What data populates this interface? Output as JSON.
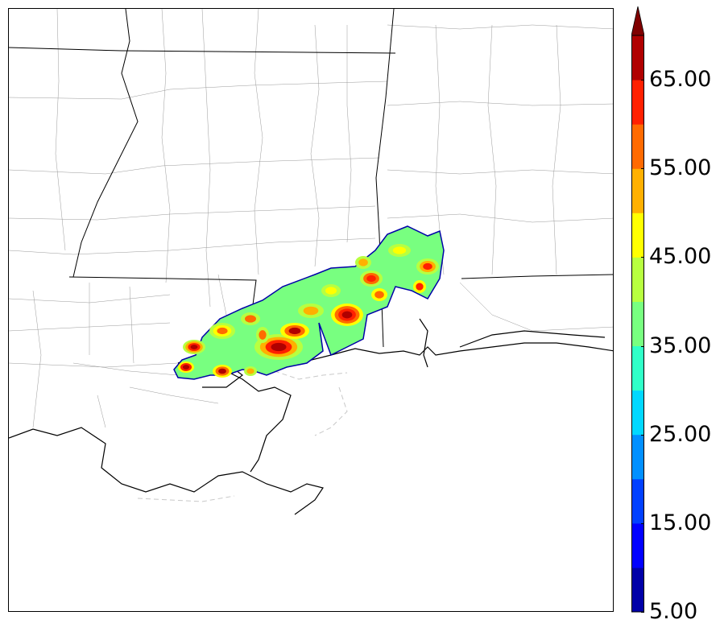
{
  "colorbar": {
    "labels": [
      "65.00",
      "55.00",
      "45.00",
      "35.00",
      "25.00",
      "15.00",
      "5.00"
    ],
    "levels": [
      5,
      10,
      15,
      20,
      25,
      30,
      35,
      40,
      45,
      50,
      55,
      60,
      65,
      70
    ],
    "colors": [
      "#0000a8",
      "#0000ff",
      "#0040ff",
      "#0090ff",
      "#00d8ff",
      "#30ffc8",
      "#78ff80",
      "#b8ff40",
      "#ffff00",
      "#ffb000",
      "#ff6a00",
      "#ff2000",
      "#b00000"
    ],
    "extend_color": "#800000",
    "extend": "max"
  },
  "map": {
    "border_color": "#000000",
    "county_color": "#999999",
    "water_color": "#c8c8c8"
  }
}
